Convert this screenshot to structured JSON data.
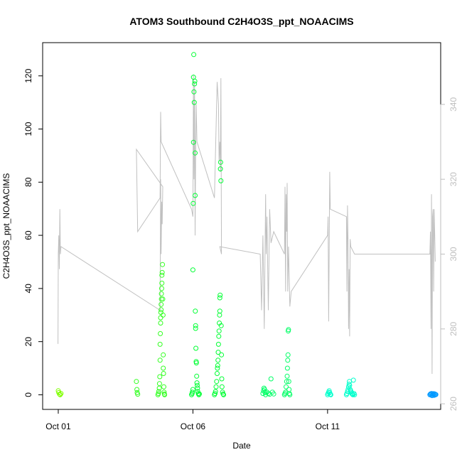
{
  "chart_data": {
    "type": "scatter",
    "title": "ATOM3 Southbound C2H4O3S_ppt_NOAACIMS",
    "xlabel": "Date",
    "ylabel": "C2H4O3S_ppt_NOAACIMS",
    "x_unit": "day of October",
    "xlim": [
      0.42,
      15.2
    ],
    "ylim": [
      -5.5,
      132.5
    ],
    "y_ticks": [
      0,
      20,
      40,
      60,
      80,
      100,
      120
    ],
    "x_ticks": [
      {
        "value": 1,
        "label": "Oct 01"
      },
      {
        "value": 6,
        "label": "Oct 06"
      },
      {
        "value": 11,
        "label": "Oct 11"
      }
    ],
    "right_axis": {
      "label": "",
      "ylim": [
        258.5,
        356.5
      ],
      "ticks": [
        260,
        280,
        300,
        320,
        340
      ],
      "color": "#bebebe"
    },
    "grid": false,
    "legend": "none",
    "colors": {
      "secondary_line": "#c0c0c0",
      "axis": "#000000",
      "right_axis": "#bebebe"
    },
    "series": [
      {
        "type": "scatter",
        "color": "#7fff00",
        "points": [
          [
            1.0,
            1.5
          ],
          [
            1.02,
            0.8
          ],
          [
            1.05,
            0.2
          ],
          [
            1.07,
            0.0
          ],
          [
            1.1,
            0.5
          ]
        ]
      },
      {
        "type": "scatter",
        "color": "#33ff22",
        "points": [
          [
            3.9,
            5.0
          ],
          [
            3.92,
            2.0
          ],
          [
            3.93,
            0.8
          ],
          [
            3.95,
            0.2
          ],
          [
            4.7,
            0.0
          ],
          [
            4.72,
            0.5
          ],
          [
            4.73,
            1.2
          ],
          [
            4.75,
            2.5
          ],
          [
            4.76,
            4.2
          ],
          [
            4.77,
            6.8
          ],
          [
            4.78,
            13.0
          ],
          [
            4.78,
            19.0
          ],
          [
            4.79,
            23.0
          ],
          [
            4.8,
            27.0
          ],
          [
            4.8,
            29.0
          ],
          [
            4.81,
            31.0
          ],
          [
            4.82,
            32.0
          ],
          [
            4.82,
            34.0
          ],
          [
            4.83,
            36.0
          ],
          [
            4.83,
            38.0
          ],
          [
            4.84,
            40.0
          ],
          [
            4.85,
            42.0
          ],
          [
            4.85,
            45.0
          ],
          [
            4.86,
            46.0
          ],
          [
            4.87,
            49.0
          ],
          [
            4.88,
            36.0
          ],
          [
            4.89,
            30.0
          ],
          [
            4.9,
            15.0
          ],
          [
            4.9,
            10.0
          ],
          [
            4.91,
            8.0
          ],
          [
            4.92,
            3.0
          ],
          [
            4.93,
            1.0
          ],
          [
            4.94,
            0.3
          ],
          [
            4.95,
            0.0
          ]
        ]
      },
      {
        "type": "scatter",
        "color": "#00ff33",
        "points": [
          [
            5.95,
            0.0
          ],
          [
            5.97,
            0.5
          ],
          [
            5.98,
            1.0
          ],
          [
            6.0,
            2.0
          ],
          [
            6.0,
            47.0
          ],
          [
            6.01,
            72.0
          ],
          [
            6.02,
            95.0
          ],
          [
            6.02,
            119.5
          ],
          [
            6.03,
            128.0
          ],
          [
            6.04,
            114.0
          ],
          [
            6.05,
            110.0
          ],
          [
            6.06,
            117.0
          ],
          [
            6.07,
            118.0
          ],
          [
            6.08,
            91.0
          ],
          [
            6.08,
            75.0
          ],
          [
            6.09,
            31.5
          ],
          [
            6.1,
            26.0
          ],
          [
            6.1,
            25.0
          ],
          [
            6.11,
            17.5
          ],
          [
            6.12,
            12.5
          ],
          [
            6.13,
            12.0
          ],
          [
            6.14,
            7.0
          ],
          [
            6.15,
            4.5
          ],
          [
            6.16,
            3.5
          ],
          [
            6.17,
            2.5
          ],
          [
            6.18,
            1.2
          ],
          [
            6.2,
            0.5
          ],
          [
            6.22,
            0.0
          ],
          [
            6.24,
            0.3
          ],
          [
            6.8,
            0.0
          ],
          [
            6.82,
            0.5
          ],
          [
            6.84,
            1.2
          ],
          [
            6.86,
            3.0
          ],
          [
            6.88,
            5.0
          ],
          [
            6.9,
            8.0
          ],
          [
            6.91,
            10.0
          ],
          [
            6.92,
            11.0
          ],
          [
            6.93,
            13.0
          ],
          [
            6.94,
            16.0
          ],
          [
            6.95,
            19.0
          ],
          [
            6.96,
            22.0
          ],
          [
            6.97,
            24.0
          ],
          [
            6.98,
            27.0
          ],
          [
            6.99,
            30.0
          ],
          [
            7.0,
            31.5
          ],
          [
            7.0,
            36.5
          ],
          [
            7.01,
            37.5
          ],
          [
            7.02,
            85.0
          ],
          [
            7.03,
            87.5
          ],
          [
            7.04,
            80.5
          ],
          [
            7.05,
            26.0
          ],
          [
            7.06,
            15.0
          ],
          [
            7.07,
            6.0
          ],
          [
            7.08,
            3.0
          ],
          [
            7.1,
            1.0
          ],
          [
            7.12,
            0.3
          ],
          [
            7.14,
            0.0
          ]
        ]
      },
      {
        "type": "scatter",
        "color": "#00ff66",
        "points": [
          [
            8.6,
            0.5
          ],
          [
            8.62,
            1.5
          ],
          [
            8.64,
            2.5
          ],
          [
            8.66,
            2.0
          ],
          [
            8.68,
            0.8
          ],
          [
            8.7,
            0.0
          ],
          [
            8.75,
            1.0
          ],
          [
            8.8,
            0.5
          ],
          [
            8.85,
            0.2
          ],
          [
            8.9,
            6.0
          ],
          [
            8.95,
            1.0
          ],
          [
            9.0,
            0.3
          ],
          [
            9.4,
            0.0
          ],
          [
            9.42,
            0.5
          ],
          [
            9.44,
            1.0
          ],
          [
            9.46,
            3.0
          ],
          [
            9.48,
            5.0
          ],
          [
            9.5,
            7.0
          ],
          [
            9.51,
            10.0
          ],
          [
            9.52,
            13.0
          ],
          [
            9.53,
            15.0
          ],
          [
            9.54,
            24.0
          ],
          [
            9.55,
            24.5
          ],
          [
            9.56,
            5.0
          ],
          [
            9.57,
            2.0
          ],
          [
            9.58,
            0.5
          ],
          [
            9.6,
            0.0
          ]
        ]
      },
      {
        "type": "scatter",
        "color": "#00ffcc",
        "points": [
          [
            11.0,
            0.0
          ],
          [
            11.02,
            0.5
          ],
          [
            11.04,
            1.0
          ],
          [
            11.06,
            1.5
          ],
          [
            11.08,
            0.8
          ],
          [
            11.1,
            0.2
          ],
          [
            11.12,
            0.0
          ],
          [
            11.7,
            0.0
          ],
          [
            11.72,
            0.5
          ],
          [
            11.74,
            1.2
          ],
          [
            11.76,
            2.0
          ],
          [
            11.78,
            3.0
          ],
          [
            11.8,
            4.0
          ],
          [
            11.81,
            5.0
          ],
          [
            11.82,
            3.5
          ],
          [
            11.84,
            2.0
          ],
          [
            11.86,
            1.5
          ],
          [
            11.88,
            1.0
          ],
          [
            11.9,
            0.5
          ],
          [
            11.92,
            0.2
          ],
          [
            11.94,
            0.0
          ],
          [
            11.96,
            5.5
          ],
          [
            11.98,
            0.5
          ],
          [
            12.0,
            0.0
          ]
        ]
      },
      {
        "type": "scatter",
        "color": "#0099ff",
        "points": [
          [
            14.8,
            0.0
          ],
          [
            14.82,
            0.3
          ],
          [
            14.84,
            0.0
          ],
          [
            14.86,
            0.5
          ],
          [
            14.88,
            -0.3
          ],
          [
            14.9,
            0.2
          ],
          [
            14.92,
            0.0
          ],
          [
            14.94,
            0.4
          ],
          [
            14.96,
            -0.2
          ],
          [
            14.98,
            0.3
          ],
          [
            15.0,
            0.0
          ],
          [
            15.02,
            0.1
          ]
        ]
      },
      {
        "type": "line",
        "axis": "right",
        "color": "#c0c0c0",
        "points": [
          [
            0.99,
            276
          ],
          [
            1.0,
            300
          ],
          [
            1.02,
            305
          ],
          [
            1.04,
            296
          ],
          [
            1.06,
            312
          ],
          [
            1.08,
            300
          ],
          [
            1.1,
            302
          ],
          [
            4.78,
            285
          ],
          [
            4.8,
            320
          ],
          [
            4.82,
            300
          ],
          [
            4.84,
            314
          ],
          [
            4.86,
            308
          ],
          [
            4.88,
            318
          ],
          [
            3.9,
            328
          ],
          [
            3.95,
            306
          ],
          [
            4.78,
            315
          ],
          [
            4.8,
            338
          ],
          [
            4.82,
            330
          ],
          [
            5.95,
            312
          ],
          [
            6.0,
            310
          ],
          [
            6.02,
            348
          ],
          [
            6.04,
            320
          ],
          [
            6.06,
            346
          ],
          [
            6.08,
            305
          ],
          [
            6.1,
            325
          ],
          [
            6.12,
            340
          ],
          [
            6.15,
            330
          ],
          [
            6.8,
            315
          ],
          [
            6.9,
            346
          ],
          [
            6.95,
            340
          ],
          [
            6.97,
            325
          ],
          [
            7.0,
            330
          ],
          [
            7.02,
            322
          ],
          [
            7.04,
            347
          ],
          [
            7.06,
            300
          ],
          [
            7.0,
            302
          ],
          [
            8.5,
            300
          ],
          [
            8.55,
            285
          ],
          [
            8.6,
            305
          ],
          [
            8.65,
            280
          ],
          [
            8.7,
            316
          ],
          [
            8.72,
            300
          ],
          [
            8.75,
            310
          ],
          [
            8.8,
            285
          ],
          [
            8.85,
            312
          ],
          [
            8.9,
            303
          ],
          [
            9.0,
            306
          ],
          [
            9.4,
            300
          ],
          [
            9.42,
            318
          ],
          [
            9.44,
            290
          ],
          [
            9.46,
            316
          ],
          [
            9.48,
            306
          ],
          [
            9.5,
            319
          ],
          [
            9.52,
            290
          ],
          [
            9.55,
            302
          ],
          [
            9.6,
            286
          ],
          [
            9.65,
            290
          ],
          [
            11.0,
            305
          ],
          [
            11.02,
            310
          ],
          [
            11.04,
            282
          ],
          [
            11.06,
            300
          ],
          [
            11.08,
            322
          ],
          [
            11.1,
            312
          ],
          [
            11.7,
            310
          ],
          [
            11.72,
            290
          ],
          [
            11.74,
            313
          ],
          [
            11.76,
            303
          ],
          [
            11.78,
            280
          ],
          [
            11.8,
            296
          ],
          [
            11.82,
            278
          ],
          [
            11.84,
            304
          ],
          [
            11.86,
            302
          ],
          [
            12.0,
            300
          ],
          [
            14.8,
            300
          ],
          [
            14.82,
            306
          ],
          [
            14.84,
            280
          ],
          [
            14.86,
            316
          ],
          [
            14.88,
            268
          ],
          [
            14.9,
            310
          ],
          [
            14.92,
            312
          ],
          [
            14.94,
            290
          ],
          [
            14.96,
            312
          ],
          [
            15.0,
            298
          ]
        ]
      }
    ]
  }
}
